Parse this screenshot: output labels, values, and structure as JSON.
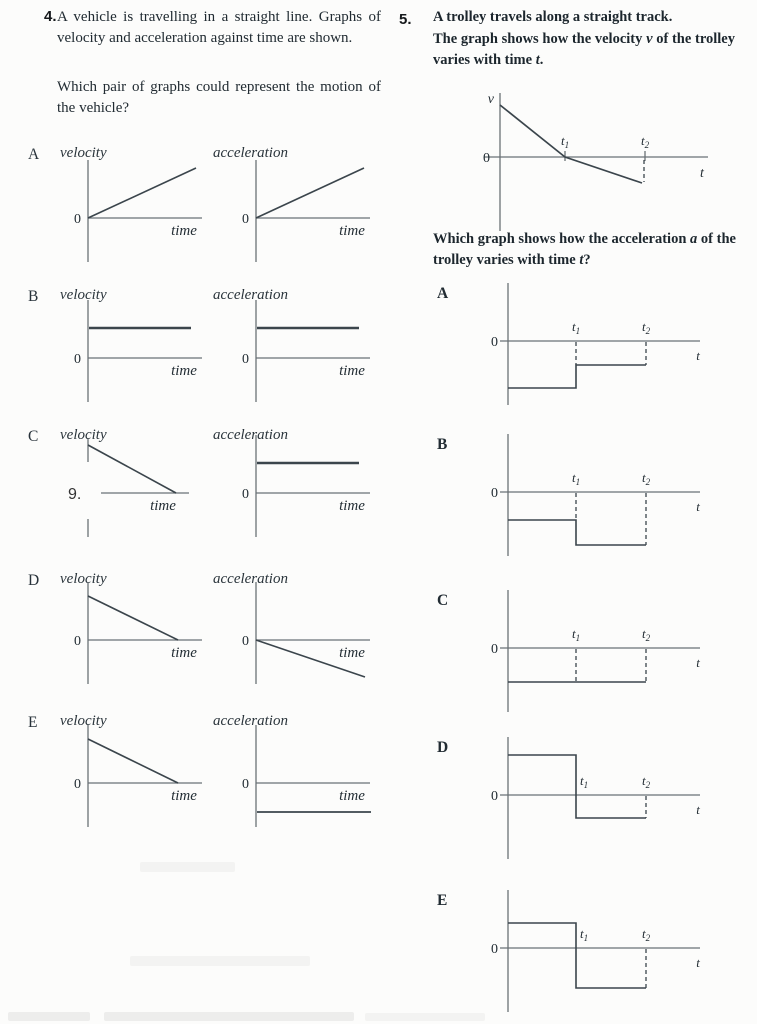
{
  "page": {
    "bg": "#fcfcfb",
    "ink": "#232d34",
    "axis_color": "#6a7176",
    "curve_color": "#3b454c"
  },
  "q4": {
    "number": "4.",
    "para1": "A vehicle is travelling in a straight line. Graphs of velocity and acceleration against time are shown.",
    "para2": "Which pair of graphs could represent the motion of the vehicle?",
    "labels": {
      "velocity": "velocity",
      "acceleration": "acceleration",
      "time": "time",
      "zero": "0"
    },
    "options": [
      {
        "label": "A",
        "velocity": "ramp_up",
        "acceleration": "ramp_up"
      },
      {
        "label": "B",
        "velocity": "const_pos",
        "acceleration": "const_pos"
      },
      {
        "label": "C",
        "velocity": "ramp_down_artifact",
        "acceleration": "const_pos",
        "artifact_text": "9."
      },
      {
        "label": "D",
        "velocity": "ramp_down",
        "acceleration": "ramp_down_neg"
      },
      {
        "label": "E",
        "velocity": "ramp_down",
        "acceleration": "const_neg"
      }
    ]
  },
  "q5": {
    "number": "5.",
    "para1": "A trolley travels along a straight track.",
    "para2_segments": [
      {
        "text": "The graph shows how the velocity ",
        "style": "n"
      },
      {
        "text": "v",
        "style": "i"
      },
      {
        "text": " of the trolley varies with time ",
        "style": "n"
      },
      {
        "text": "t",
        "style": "i"
      },
      {
        "text": ".",
        "style": "n"
      }
    ],
    "question_segments": [
      {
        "text": "Which graph shows how the acceleration ",
        "style": "n"
      },
      {
        "text": "a",
        "style": "i"
      },
      {
        "text": " of the trolley varies with time ",
        "style": "n"
      },
      {
        "text": "t",
        "style": "i"
      },
      {
        "text": "?",
        "style": "n"
      }
    ],
    "labels": {
      "a": "a",
      "v": "v",
      "t": "t",
      "zero": "0",
      "t1": {
        "base": "t",
        "sub": "1"
      },
      "t2": {
        "base": "t",
        "sub": "2"
      }
    },
    "main_graph": {
      "description": "velocity decreases from positive value, crosses zero at t1, continues to negative value until t2",
      "points_rel": [
        [
          0,
          52
        ],
        [
          65,
          0
        ],
        [
          142,
          -26
        ]
      ],
      "dashed_at_t2": true
    },
    "options": [
      {
        "label": "A",
        "graph": {
          "l1": -47,
          "l2": -24,
          "dashes": [
            {
              "x": "t1",
              "to": -24
            },
            {
              "x": "t2",
              "to": -24
            }
          ],
          "t1dx": 0
        }
      },
      {
        "label": "B",
        "graph": {
          "l1": -28,
          "l2": -53,
          "dashes": [
            {
              "x": "t1",
              "to": -28
            },
            {
              "x": "t2",
              "to": -53
            }
          ],
          "t1dx": 0
        }
      },
      {
        "label": "C",
        "graph": {
          "l1": -34,
          "l2": -34,
          "dashes": [
            {
              "x": "t1",
              "to": -34
            },
            {
              "x": "t2",
              "to": -34
            }
          ],
          "t1dx": 0
        }
      },
      {
        "label": "D",
        "graph": {
          "l1": 40,
          "l2": -23,
          "dashes": [
            {
              "x": "t2",
              "to": -23
            }
          ],
          "t1dx": 8
        }
      },
      {
        "label": "E",
        "graph": {
          "l1": 25,
          "l2": -40,
          "dashes": [
            {
              "x": "t2",
              "to": -40
            }
          ],
          "t1dx": 8
        }
      }
    ]
  }
}
